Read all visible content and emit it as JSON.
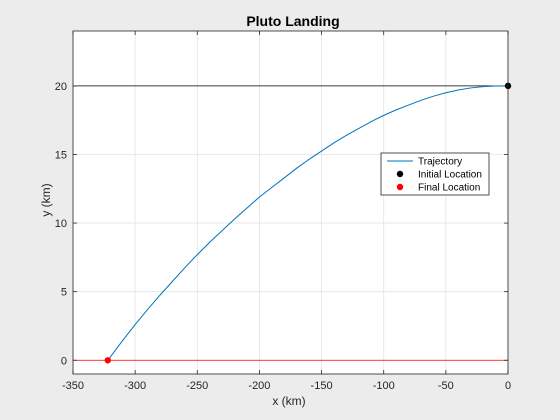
{
  "chart_data": {
    "type": "line",
    "title": "Pluto Landing",
    "xlabel": "x (km)",
    "ylabel": "y (km)",
    "xlim": [
      -350,
      0
    ],
    "ylim": [
      -1,
      24
    ],
    "xticks": [
      -350,
      -300,
      -250,
      -200,
      -150,
      -100,
      -50,
      0
    ],
    "yticks": [
      0,
      5,
      10,
      15,
      20
    ],
    "xtick_labels": [
      "-350",
      "-300",
      "-250",
      "-200",
      "-150",
      "-100",
      "-50",
      "0"
    ],
    "ytick_labels": [
      "0",
      "5",
      "10",
      "15",
      "20"
    ],
    "grid": true,
    "legend_position": "right",
    "reference_lines": [
      {
        "y": 20,
        "color": "#000000"
      },
      {
        "y": 0,
        "color": "#ff0000"
      }
    ],
    "series": [
      {
        "name": "Trajectory",
        "kind": "line",
        "color": "#0072bd",
        "x": [
          -322,
          -310,
          -300,
          -290,
          -280,
          -270,
          -260,
          -250,
          -240,
          -230,
          -220,
          -210,
          -200,
          -190,
          -180,
          -170,
          -160,
          -150,
          -140,
          -130,
          -120,
          -110,
          -100,
          -90,
          -80,
          -70,
          -60,
          -50,
          -40,
          -30,
          -20,
          -10,
          0
        ],
        "y": [
          0,
          1.45,
          2.6,
          3.7,
          4.75,
          5.75,
          6.75,
          7.7,
          8.6,
          9.45,
          10.3,
          11.1,
          11.9,
          12.6,
          13.3,
          14.0,
          14.65,
          15.25,
          15.85,
          16.4,
          16.9,
          17.4,
          17.85,
          18.25,
          18.6,
          18.95,
          19.25,
          19.5,
          19.7,
          19.85,
          19.95,
          19.99,
          20
        ]
      },
      {
        "name": "Initial Location",
        "kind": "marker",
        "color": "#000000",
        "x": [
          0
        ],
        "y": [
          20
        ]
      },
      {
        "name": "Final Location",
        "kind": "marker",
        "color": "#ff0000",
        "x": [
          -322
        ],
        "y": [
          0
        ]
      }
    ]
  }
}
